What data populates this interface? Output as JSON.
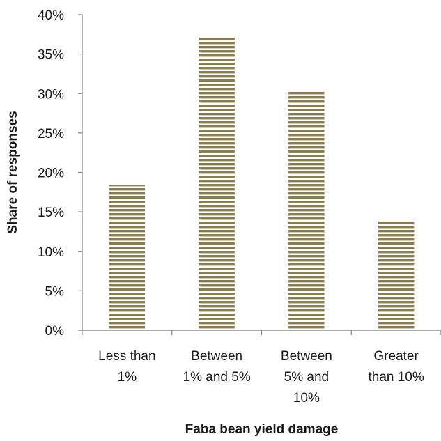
{
  "chart_data": {
    "type": "bar",
    "title": "",
    "xlabel": "Faba bean yield damage",
    "ylabel": "Share of responses",
    "categories": [
      [
        "Less than",
        "1%"
      ],
      [
        "Between",
        "1% and 5%"
      ],
      [
        "Between",
        "5% and",
        "10%"
      ],
      [
        "Greater",
        "than 10%"
      ]
    ],
    "values": [
      18.4,
      37.2,
      30.3,
      13.9
    ],
    "ylim": [
      0,
      40
    ],
    "yticks": [
      0,
      5,
      10,
      15,
      20,
      25,
      30,
      35,
      40
    ],
    "ytick_labels": [
      "0%",
      "5%",
      "10%",
      "15%",
      "20%",
      "25%",
      "30%",
      "35%",
      "40%"
    ],
    "grid": false,
    "legend": "none",
    "colors": {
      "bar_stripe": "#8b7d4f",
      "bar_gap": "#ffffff",
      "axis": "#7f7f7f"
    }
  }
}
